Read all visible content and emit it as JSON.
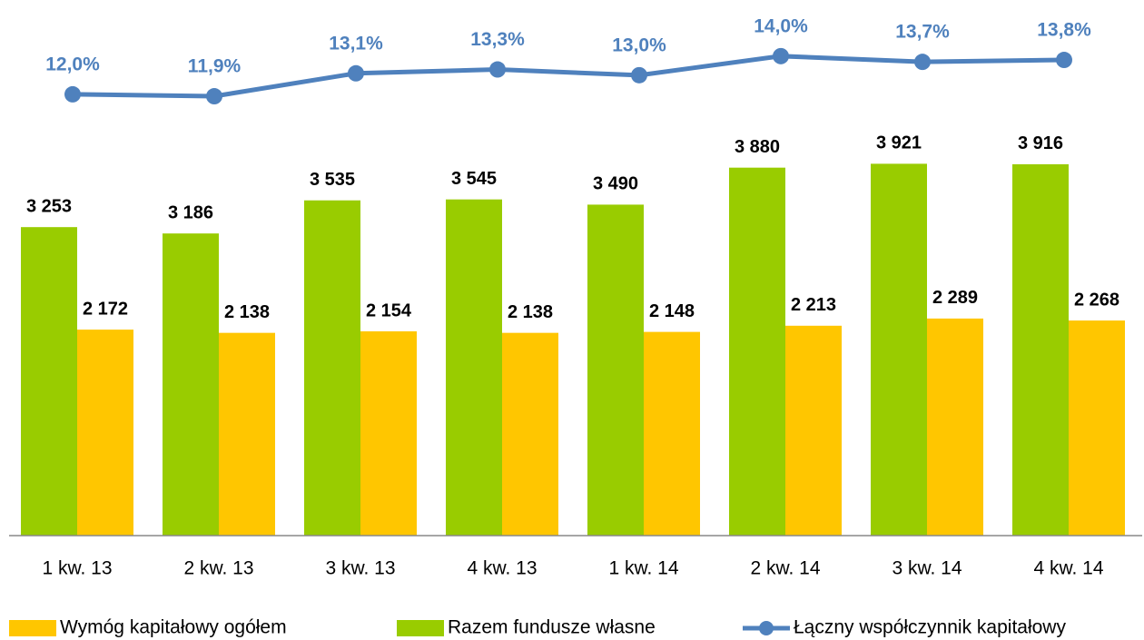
{
  "chart_data": {
    "type": "bar",
    "categories": [
      "1 kw. 13",
      "2 kw. 13",
      "3 kw. 13",
      "4 kw. 13",
      "1 kw. 14",
      "2 kw. 14",
      "3 kw. 14",
      "4 kw. 14"
    ],
    "series": [
      {
        "name": "Wymóg kapitałowy ogółem",
        "color": "#ffc600",
        "values": [
          2172,
          2138,
          2154,
          2138,
          2148,
          2213,
          2289,
          2268
        ],
        "value_labels": [
          "2 172",
          "2 138",
          "2 154",
          "2 138",
          "2 148",
          "2 213",
          "2 289",
          "2 268"
        ]
      },
      {
        "name": "Razem fundusze własne",
        "color": "#99cc00",
        "values": [
          3253,
          3186,
          3535,
          3545,
          3490,
          3880,
          3921,
          3916
        ],
        "value_labels": [
          "3 253",
          "3 186",
          "3 535",
          "3 545",
          "3 490",
          "3 880",
          "3 921",
          "3 916"
        ]
      },
      {
        "name": "Łączny współczynnik kapitałowy",
        "color": "#4f81bd",
        "type": "line",
        "axis": "y2",
        "values": [
          12.0,
          11.9,
          13.1,
          13.3,
          13.0,
          14.0,
          13.7,
          13.8
        ],
        "value_labels": [
          "12,0%",
          "11,9%",
          "13,1%",
          "13,3%",
          "13,0%",
          "14,0%",
          "13,7%",
          "13,8%"
        ]
      }
    ],
    "ylim": [
      0,
      5600
    ],
    "y2lim": [
      -11.1,
      16.7
    ]
  }
}
